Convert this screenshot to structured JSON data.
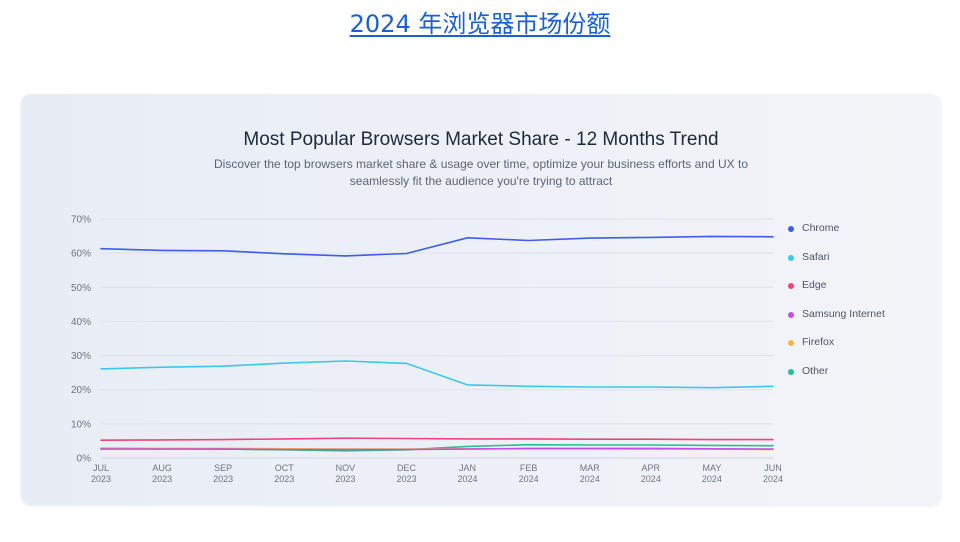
{
  "page": {
    "heading": "2024 年浏览器市场份额"
  },
  "chart_data": {
    "type": "line",
    "title": "Most Popular Browsers Market Share - 12 Months Trend",
    "subtitle_lines": [
      "Discover the top browsers market share & usage over time, optimize your business efforts and UX to",
      "seamlessly fit the audience you're trying to attract"
    ],
    "categories": [
      [
        "JUL",
        "2023"
      ],
      [
        "AUG",
        "2023"
      ],
      [
        "SEP",
        "2023"
      ],
      [
        "OCT",
        "2023"
      ],
      [
        "NOV",
        "2023"
      ],
      [
        "DEC",
        "2023"
      ],
      [
        "JAN",
        "2024"
      ],
      [
        "FEB",
        "2024"
      ],
      [
        "MAR",
        "2024"
      ],
      [
        "APR",
        "2024"
      ],
      [
        "MAY",
        "2024"
      ],
      [
        "JUN",
        "2024"
      ]
    ],
    "ylim": [
      0,
      70
    ],
    "yticks": [
      {
        "value": 0,
        "label": "0%"
      },
      {
        "value": 10,
        "label": "10%"
      },
      {
        "value": 20,
        "label": "20%"
      },
      {
        "value": 30,
        "label": "30%"
      },
      {
        "value": 40,
        "label": "40%"
      },
      {
        "value": 50,
        "label": "50%"
      },
      {
        "value": 60,
        "label": "60%"
      },
      {
        "value": 70,
        "label": "70%"
      }
    ],
    "grid": true,
    "legend_position": "right",
    "series": [
      {
        "name": "Chrome",
        "color": "#3d5ee8",
        "values": [
          61.3,
          60.8,
          60.7,
          59.8,
          59.2,
          59.9,
          64.5,
          63.7,
          64.4,
          64.6,
          64.9,
          64.8
        ]
      },
      {
        "name": "Safari",
        "color": "#3cc8ea",
        "values": [
          26.1,
          26.6,
          26.9,
          27.8,
          28.4,
          27.7,
          21.4,
          21.0,
          20.8,
          20.8,
          20.6,
          21.0
        ]
      },
      {
        "name": "Edge",
        "color": "#f0447a",
        "values": [
          5.2,
          5.3,
          5.4,
          5.6,
          5.8,
          5.7,
          5.6,
          5.6,
          5.5,
          5.5,
          5.4,
          5.4
        ]
      },
      {
        "name": "Samsung Internet",
        "color": "#c44de8",
        "values": [
          2.6,
          2.6,
          2.6,
          2.5,
          2.5,
          2.5,
          2.6,
          2.8,
          2.8,
          2.8,
          2.7,
          2.6
        ]
      },
      {
        "name": "Firefox",
        "color": "#f5b63a",
        "values": [
          2.9,
          2.8,
          2.8,
          2.7,
          2.6,
          2.6,
          2.7,
          2.7,
          2.7,
          2.6,
          2.6,
          2.5
        ]
      },
      {
        "name": "Other",
        "color": "#1ec48a",
        "values": [
          2.8,
          2.7,
          2.6,
          2.4,
          2.1,
          2.4,
          3.4,
          3.9,
          3.8,
          3.8,
          3.7,
          3.6
        ]
      }
    ]
  }
}
